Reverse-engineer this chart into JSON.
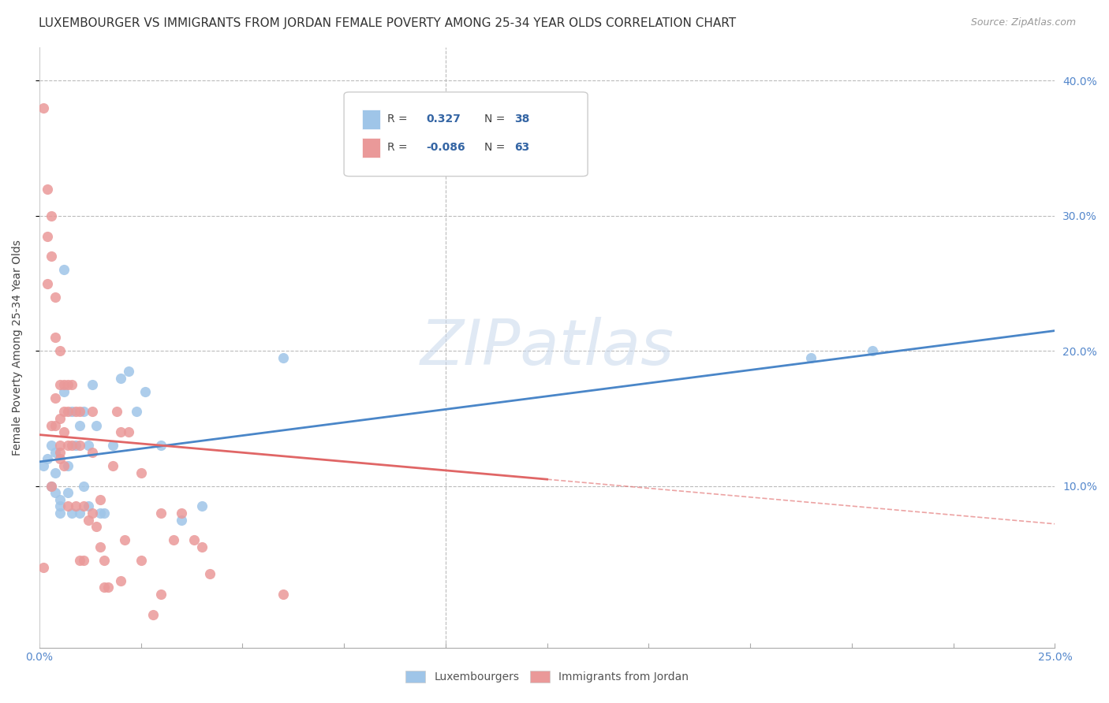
{
  "title": "LUXEMBOURGER VS IMMIGRANTS FROM JORDAN FEMALE POVERTY AMONG 25-34 YEAR OLDS CORRELATION CHART",
  "source": "Source: ZipAtlas.com",
  "ylabel": "Female Poverty Among 25-34 Year Olds",
  "xlim": [
    0.0,
    0.25
  ],
  "ylim": [
    -0.02,
    0.425
  ],
  "xtick_labeled": [
    0.0,
    0.25
  ],
  "xtick_labeled_str": [
    "0.0%",
    "25.0%"
  ],
  "xtick_minor": [
    0.025,
    0.05,
    0.075,
    0.1,
    0.125,
    0.15,
    0.175,
    0.2,
    0.225
  ],
  "ytick_labeled": [
    0.1,
    0.2,
    0.3,
    0.4
  ],
  "ytick_labeled_str": [
    "10.0%",
    "20.0%",
    "30.0%",
    "40.0%"
  ],
  "ytick_minor": [],
  "legend_blue_R": "0.327",
  "legend_blue_N": "38",
  "legend_pink_R": "-0.086",
  "legend_pink_N": "63",
  "legend_label_blue": "Luxembourgers",
  "legend_label_pink": "Immigrants from Jordan",
  "blue_color": "#9fc5e8",
  "pink_color": "#ea9999",
  "blue_line_color": "#4a86c8",
  "pink_line_color": "#e06666",
  "watermark": "ZIPatlas",
  "title_fontsize": 11,
  "source_fontsize": 9,
  "grid_color": "#bbbbbb",
  "blue_scatter_x": [
    0.001,
    0.002,
    0.003,
    0.003,
    0.004,
    0.004,
    0.004,
    0.005,
    0.005,
    0.005,
    0.006,
    0.006,
    0.007,
    0.007,
    0.008,
    0.008,
    0.009,
    0.01,
    0.01,
    0.011,
    0.011,
    0.012,
    0.012,
    0.013,
    0.014,
    0.015,
    0.016,
    0.018,
    0.02,
    0.022,
    0.024,
    0.026,
    0.03,
    0.035,
    0.04,
    0.06,
    0.19,
    0.205
  ],
  "blue_scatter_y": [
    0.115,
    0.12,
    0.13,
    0.1,
    0.125,
    0.11,
    0.095,
    0.085,
    0.08,
    0.09,
    0.17,
    0.26,
    0.115,
    0.095,
    0.08,
    0.155,
    0.13,
    0.145,
    0.08,
    0.155,
    0.1,
    0.13,
    0.085,
    0.175,
    0.145,
    0.08,
    0.08,
    0.13,
    0.18,
    0.185,
    0.155,
    0.17,
    0.13,
    0.075,
    0.085,
    0.195,
    0.195,
    0.2
  ],
  "pink_scatter_x": [
    0.001,
    0.001,
    0.002,
    0.002,
    0.002,
    0.003,
    0.003,
    0.003,
    0.003,
    0.004,
    0.004,
    0.004,
    0.004,
    0.005,
    0.005,
    0.005,
    0.005,
    0.005,
    0.005,
    0.006,
    0.006,
    0.006,
    0.006,
    0.007,
    0.007,
    0.007,
    0.007,
    0.008,
    0.008,
    0.009,
    0.009,
    0.01,
    0.01,
    0.01,
    0.011,
    0.011,
    0.012,
    0.013,
    0.013,
    0.013,
    0.014,
    0.015,
    0.015,
    0.016,
    0.016,
    0.017,
    0.018,
    0.019,
    0.02,
    0.02,
    0.021,
    0.022,
    0.025,
    0.025,
    0.028,
    0.03,
    0.03,
    0.033,
    0.035,
    0.038,
    0.04,
    0.042,
    0.06
  ],
  "pink_scatter_y": [
    0.38,
    0.04,
    0.32,
    0.285,
    0.25,
    0.3,
    0.27,
    0.145,
    0.1,
    0.24,
    0.21,
    0.165,
    0.145,
    0.13,
    0.12,
    0.2,
    0.175,
    0.15,
    0.125,
    0.175,
    0.155,
    0.14,
    0.115,
    0.175,
    0.13,
    0.155,
    0.085,
    0.175,
    0.13,
    0.155,
    0.085,
    0.155,
    0.13,
    0.045,
    0.085,
    0.045,
    0.075,
    0.155,
    0.125,
    0.08,
    0.07,
    0.09,
    0.055,
    0.045,
    0.025,
    0.025,
    0.115,
    0.155,
    0.14,
    0.03,
    0.06,
    0.14,
    0.11,
    0.045,
    0.005,
    0.02,
    0.08,
    0.06,
    0.08,
    0.06,
    0.055,
    0.035,
    0.02
  ],
  "blue_trendline_x": [
    0.0,
    0.25
  ],
  "blue_trendline_y": [
    0.118,
    0.215
  ],
  "pink_trendline_x": [
    0.0,
    0.125
  ],
  "pink_trendline_y": [
    0.138,
    0.105
  ],
  "pink_dashline_x": [
    0.125,
    0.25
  ],
  "pink_dashline_y": [
    0.105,
    0.072
  ]
}
